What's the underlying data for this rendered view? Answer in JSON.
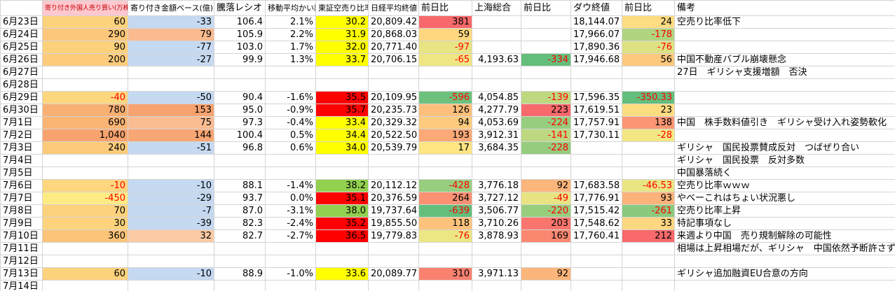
{
  "table": {
    "header": [
      null,
      "寄り付き外国人売り買い(万株)",
      "寄り付き金額ベース(億)",
      "騰落レシオ",
      "移動平均かい離",
      "東証空売り比率",
      "日経平均終値",
      "前日比",
      "上海総合",
      "前日比",
      "ダウ終値",
      "前日比",
      "備考"
    ],
    "rows": [
      [
        "6月23日",
        "60",
        "-33",
        "106.4",
        "2.1%",
        "30.2",
        "20,809.42",
        "381",
        null,
        null,
        "18,144.07",
        "24",
        "空売り比率低下"
      ],
      [
        "6月24日",
        "290",
        "79",
        "105.9",
        "2.2%",
        "31.9",
        "20,868.03",
        "59",
        null,
        null,
        "17,966.07",
        "-178",
        null
      ],
      [
        "6月25日",
        "90",
        "-77",
        "103.0",
        "1.7%",
        "32.0",
        "20,771.40",
        "-97",
        null,
        null,
        "17,890.36",
        "-76",
        null
      ],
      [
        "6月26日",
        "200",
        "-27",
        "99.9",
        "1.3%",
        "33.7",
        "20,706.15",
        "-65",
        "4,193.63",
        "-334",
        "17,946.68",
        "56",
        "中国不動産バブル崩壊懸念"
      ],
      [
        "6月27日",
        null,
        null,
        null,
        null,
        null,
        null,
        null,
        null,
        null,
        null,
        null,
        "27日　ギリシャ支援増額　否決"
      ],
      [
        "6月28日",
        null,
        null,
        null,
        null,
        null,
        null,
        null,
        null,
        null,
        null,
        null,
        null
      ],
      [
        "6月29日",
        "-40",
        "-50",
        "90.4",
        "-1.6%",
        "35.5",
        "20,109.95",
        "-596",
        "4,054.85",
        "-139",
        "17,596.35",
        "-350.33",
        null
      ],
      [
        "6月30日",
        "780",
        "153",
        "95.0",
        "-0.9%",
        "35.7",
        "20,235.73",
        "126",
        "4,277.79",
        "223",
        "17,619.51",
        "23",
        null
      ],
      [
        "7月1日",
        "690",
        "75",
        "97.3",
        "-0.4%",
        "33.4",
        "20,329.32",
        "94",
        "4,053.69",
        "-224",
        "17,757.91",
        "138",
        "中国　株手数料値引き　ギリシャ受け入れ姿勢軟化"
      ],
      [
        "7月2日",
        "1,040",
        "144",
        "100.4",
        "0.5%",
        "34.4",
        "20,522.50",
        "193",
        "3,912.31",
        "-141",
        "17,730.11",
        "-28",
        null
      ],
      [
        "7月3日",
        "240",
        "-51",
        "96.8",
        "0.6%",
        "34.0",
        "20,539.79",
        "17",
        "3,684.35",
        "-228",
        null,
        null,
        "ギリシャ　国民投票賛成反対　つばぜり合い"
      ],
      [
        "7月4日",
        null,
        null,
        null,
        null,
        null,
        null,
        null,
        null,
        null,
        null,
        null,
        "ギリシャ　国民投票　反対多数"
      ],
      [
        "7月5日",
        null,
        null,
        null,
        null,
        null,
        null,
        null,
        null,
        null,
        null,
        null,
        "中国暴落続く"
      ],
      [
        "7月6日",
        "-10",
        "-10",
        "88.1",
        "-1.4%",
        "38.2",
        "20,112.12",
        "-428",
        "3,776.18",
        "92",
        "17,683.58",
        "-46.53",
        "空売り比率ｗｗｗ"
      ],
      [
        "7月7日",
        "-450",
        "-29",
        "93.7",
        "0.0%",
        "35.1",
        "20,376.59",
        "264",
        "3,727.12",
        "-49",
        "17,776.91",
        "93",
        "やべーこれはちょい状況悪し"
      ],
      [
        "7月8日",
        "70",
        "-7",
        "87.0",
        "-3.1%",
        "38.0",
        "19,737.64",
        "-639",
        "3,506.77",
        "-220",
        "17,515.42",
        "-261",
        "空売り比率上昇"
      ],
      [
        "7月9日",
        "30",
        "-39",
        "82.3",
        "-2.4%",
        "35.2",
        "19,855.50",
        "118",
        "3,710.26",
        "203",
        "17,548.62",
        "33",
        "特記事項なし"
      ],
      [
        "7月10日",
        "360",
        "32",
        "82.7",
        "-2.7%",
        "36.5",
        "19,779.83",
        "-76",
        "3,878.93",
        "169",
        "17,760.41",
        "212",
        "来週より中国　売り規制解除の可能性"
      ],
      [
        "7月11日",
        null,
        null,
        null,
        null,
        null,
        null,
        null,
        null,
        null,
        null,
        null,
        "相場は上昇相場だが、ギリシャ　中国依然予断許さず"
      ],
      [
        "7月12日",
        null,
        null,
        null,
        null,
        null,
        null,
        null,
        null,
        null,
        null,
        null,
        null
      ],
      [
        "7月13日",
        "60",
        "-10",
        "88.9",
        "-1.0%",
        "33.6",
        "20,089.77",
        "310",
        "3,971.13",
        "92",
        null,
        null,
        "ギリシャ追加融資EU合意の方向"
      ],
      [
        "7月14日",
        null,
        null,
        null,
        null,
        null,
        null,
        null,
        null,
        null,
        null,
        null,
        null
      ]
    ]
  }
}
